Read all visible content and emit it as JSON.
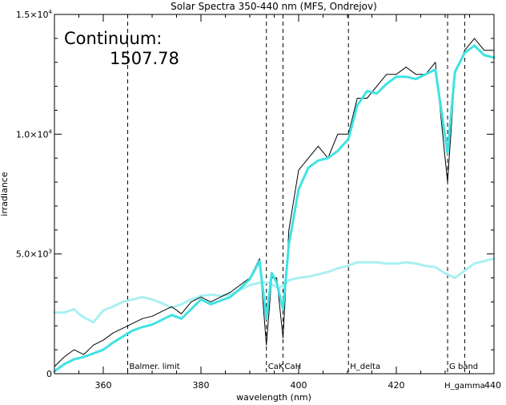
{
  "chart_data": {
    "type": "line",
    "title": "Solar Spectra 350-440 nm (MFS, Ondrejov)",
    "xlabel": "wavelength (nm)",
    "ylabel": "irradiance",
    "xlim": [
      350,
      440
    ],
    "ylim": [
      0,
      15000
    ],
    "x_ticks": [
      360,
      380,
      400,
      420,
      440
    ],
    "x_tick_labels": [
      "360",
      "380",
      "400",
      "420",
      "440"
    ],
    "y_ticks": [
      {
        "value": 0,
        "mantissa": "0",
        "exp": ""
      },
      {
        "value": 5000,
        "mantissa": "5.0×10",
        "exp": "3"
      },
      {
        "value": 10000,
        "mantissa": "1.0×10",
        "exp": "4"
      },
      {
        "value": 15000,
        "mantissa": "1.5×10",
        "exp": "4"
      }
    ],
    "continuum_label": "Continuum:",
    "continuum_value": "1507.78",
    "lines": [
      {
        "wavelength": 365,
        "label": "Balmer. limit"
      },
      {
        "wavelength": 393.4,
        "label": "CaK"
      },
      {
        "wavelength": 396.8,
        "label": "CaH"
      },
      {
        "wavelength": 410.2,
        "label": "H_delta"
      },
      {
        "wavelength": 430.5,
        "label": "G band"
      },
      {
        "wavelength": 434.0,
        "label": "H_gamma"
      }
    ],
    "series": [
      {
        "color": "#000000",
        "style": "high-resolution spectrum",
        "x": [
          350,
          352,
          354,
          356,
          358,
          360,
          362,
          364,
          366,
          368,
          370,
          372,
          374,
          376,
          378,
          380,
          382,
          384,
          386,
          388,
          390,
          392,
          393.4,
          394.5,
          395.5,
          396.8,
          398,
          400,
          402,
          404,
          406,
          408,
          410.2,
          412,
          414,
          416,
          418,
          420,
          422,
          424,
          426,
          428,
          430.5,
          432,
          434,
          436,
          438,
          440
        ],
        "y": [
          300,
          700,
          1000,
          800,
          1200,
          1400,
          1700,
          1900,
          2100,
          2300,
          2400,
          2600,
          2800,
          2500,
          3000,
          3200,
          3000,
          3200,
          3400,
          3700,
          4000,
          4800,
          1200,
          4000,
          4000,
          1500,
          6000,
          8500,
          9000,
          9500,
          9000,
          10000,
          10000,
          11500,
          11500,
          12000,
          12500,
          12500,
          12800,
          12500,
          12500,
          13000,
          8000,
          12500,
          13500,
          14000,
          13500,
          13500
        ]
      },
      {
        "color": "#3fe2e2",
        "style": "smoothed spectrum",
        "x": [
          350,
          352,
          354,
          356,
          358,
          360,
          362,
          364,
          366,
          368,
          370,
          372,
          374,
          376,
          378,
          380,
          382,
          384,
          386,
          388,
          390,
          392,
          393.4,
          394.5,
          395.5,
          396.8,
          398,
          400,
          402,
          404,
          406,
          408,
          410.2,
          412,
          414,
          416,
          418,
          420,
          422,
          424,
          426,
          428,
          430.5,
          432,
          434,
          436,
          438,
          440
        ],
        "y": [
          100,
          400,
          600,
          700,
          850,
          1000,
          1300,
          1550,
          1800,
          1950,
          2050,
          2250,
          2450,
          2300,
          2700,
          3100,
          2900,
          3050,
          3200,
          3550,
          3950,
          4700,
          2300,
          4200,
          3800,
          2700,
          5400,
          7700,
          8600,
          8900,
          9000,
          9300,
          9800,
          11200,
          11800,
          11700,
          12100,
          12400,
          12400,
          12300,
          12500,
          12700,
          9200,
          12600,
          13400,
          13700,
          13300,
          13200
        ]
      },
      {
        "color": "#aaf0f0",
        "style": "continuum",
        "x": [
          350,
          352,
          354,
          355,
          356,
          358,
          360,
          362,
          364,
          366,
          368,
          370,
          372,
          374,
          376,
          378,
          380,
          382,
          384,
          386,
          388,
          390,
          392,
          394,
          396,
          398,
          400,
          402,
          404,
          406,
          408,
          410,
          412,
          414,
          416,
          418,
          420,
          422,
          424,
          426,
          428,
          430,
          432,
          434,
          436,
          438,
          440
        ],
        "y": [
          2550,
          2550,
          2700,
          2500,
          2350,
          2150,
          2650,
          2800,
          3000,
          3100,
          3200,
          3100,
          2950,
          2750,
          2900,
          3100,
          3250,
          3300,
          3250,
          3300,
          3500,
          3700,
          3800,
          3800,
          3550,
          3900,
          4000,
          4050,
          4150,
          4250,
          4400,
          4500,
          4650,
          4650,
          4650,
          4600,
          4600,
          4650,
          4600,
          4500,
          4450,
          4200,
          4000,
          4300,
          4600,
          4700,
          4800
        ]
      }
    ]
  }
}
